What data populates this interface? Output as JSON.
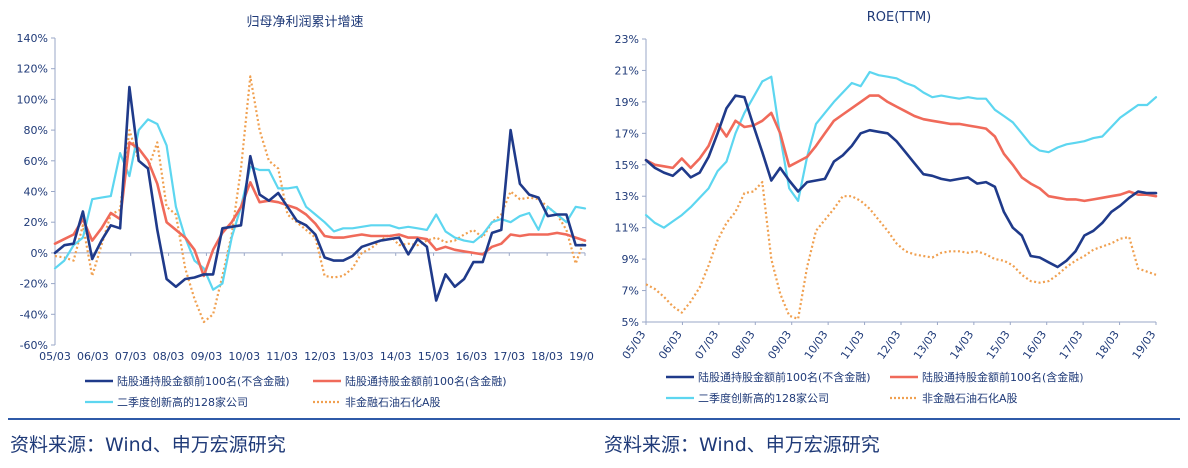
{
  "legend": {
    "s1": "陆股通持股金额前100名(不含金融)",
    "s2": "陆股通持股金额前100名(含金融)",
    "s3": "二季度创新高的128家公司",
    "s4": "非金融石油石化A股"
  },
  "colors": {
    "s1": "#1f3a8a",
    "s2": "#f06a5a",
    "s3": "#5dd6f0",
    "s4": "#f0a050",
    "axis": "#1f3a78"
  },
  "sources": {
    "left": "资料来源：Wind、申万宏源研究",
    "right": "资料来源：Wind、申万宏源研究"
  },
  "chart_data": [
    {
      "type": "line",
      "title": "归母净利润累计增速",
      "ylim": [
        -60,
        140
      ],
      "yticks": [
        "-60%",
        "-40%",
        "-20%",
        "0%",
        "20%",
        "40%",
        "60%",
        "80%",
        "100%",
        "120%",
        "140%"
      ],
      "xlim": [
        0,
        57
      ],
      "xticks": [
        "05/03",
        "06/03",
        "07/03",
        "08/03",
        "09/03",
        "10/03",
        "11/03",
        "12/03",
        "13/03",
        "14/03",
        "15/03",
        "16/03",
        "17/03",
        "18/03",
        "19/03"
      ],
      "series": [
        {
          "name": "陆股通持股金额前100名(不含金融)",
          "style": "solid",
          "width": 2.6,
          "values": [
            0,
            5,
            6,
            27,
            -4,
            8,
            18,
            16,
            108,
            60,
            55,
            15,
            -17,
            -22,
            -17,
            -16,
            -14,
            -14,
            16,
            17,
            18,
            63,
            38,
            34,
            39,
            30,
            21,
            18,
            12,
            -3,
            -5,
            -5,
            -2,
            4,
            6,
            8,
            9,
            10,
            -1,
            9,
            4,
            -31,
            -14,
            -22,
            -17,
            -6,
            -6,
            13,
            15,
            80,
            45,
            38,
            36,
            24,
            25,
            25,
            5,
            5
          ]
        },
        {
          "name": "陆股通持股金额前100名(含金融)",
          "style": "solid",
          "width": 2.6,
          "values": [
            6,
            9,
            12,
            22,
            8,
            16,
            26,
            22,
            72,
            68,
            60,
            45,
            20,
            15,
            10,
            2,
            -15,
            2,
            13,
            20,
            30,
            46,
            33,
            34,
            33,
            31,
            29,
            25,
            19,
            11,
            10,
            10,
            11,
            12,
            11,
            11,
            11,
            12,
            10,
            10,
            9,
            2,
            4,
            2,
            1,
            0,
            -1,
            4,
            6,
            12,
            11,
            12,
            12,
            12,
            13,
            12,
            10,
            8
          ]
        },
        {
          "name": "二季度创新高的128家公司",
          "style": "solid",
          "width": 2.2,
          "values": [
            -10,
            -5,
            5,
            10,
            35,
            36,
            37,
            65,
            50,
            80,
            87,
            84,
            70,
            30,
            10,
            -5,
            -10,
            -24,
            -20,
            10,
            30,
            56,
            54,
            54,
            42,
            42,
            43,
            30,
            25,
            20,
            14,
            16,
            16,
            17,
            18,
            18,
            18,
            16,
            17,
            16,
            15,
            25,
            14,
            10,
            8,
            7,
            12,
            20,
            22,
            20,
            24,
            26,
            15,
            30,
            25,
            20,
            30,
            29
          ]
        },
        {
          "name": "非金融石油石化A股",
          "style": "dotted",
          "width": 2.2,
          "values": [
            -2,
            -3,
            -5,
            18,
            -15,
            5,
            25,
            28,
            80,
            60,
            55,
            72,
            30,
            25,
            -10,
            -30,
            -45,
            -40,
            -15,
            12,
            55,
            115,
            80,
            60,
            55,
            25,
            20,
            15,
            10,
            -15,
            -16,
            -15,
            -10,
            0,
            3,
            8,
            12,
            5,
            6,
            5,
            8,
            10,
            7,
            8,
            12,
            15,
            10,
            20,
            25,
            40,
            35,
            36,
            35,
            30,
            25,
            15,
            -7,
            10
          ]
        }
      ]
    },
    {
      "type": "line",
      "title": "ROE(TTM)",
      "ylim": [
        5,
        23
      ],
      "yticks": [
        "5%",
        "7%",
        "9%",
        "11%",
        "13%",
        "15%",
        "17%",
        "19%",
        "21%",
        "23%"
      ],
      "xlim": [
        0,
        57
      ],
      "xticks": [
        "05/03",
        "06/03",
        "07/03",
        "08/03",
        "09/03",
        "10/03",
        "11/03",
        "12/03",
        "13/03",
        "14/03",
        "15/03",
        "16/03",
        "17/03",
        "18/03",
        "19/03"
      ],
      "series": [
        {
          "name": "陆股通持股金额前100名(不含金融)",
          "style": "solid",
          "width": 2.6,
          "values": [
            15.3,
            14.8,
            14.5,
            14.3,
            14.8,
            14.2,
            14.5,
            15.5,
            17.0,
            18.6,
            19.4,
            19.3,
            17.5,
            15.8,
            14.0,
            14.8,
            14.0,
            13.3,
            13.9,
            14.0,
            14.1,
            15.2,
            15.6,
            16.2,
            17.0,
            17.2,
            17.1,
            17.0,
            16.5,
            15.8,
            15.1,
            14.4,
            14.3,
            14.1,
            14.0,
            14.1,
            14.2,
            13.8,
            13.9,
            13.6,
            12.0,
            11.0,
            10.5,
            9.2,
            9.1,
            8.8,
            8.5,
            8.9,
            9.5,
            10.5,
            10.8,
            11.3,
            12.0,
            12.4,
            12.9,
            13.3,
            13.2,
            13.2
          ]
        },
        {
          "name": "陆股通持股金额前100名(含金融)",
          "style": "solid",
          "width": 2.6,
          "values": [
            15.3,
            15.0,
            14.9,
            14.8,
            15.4,
            14.8,
            15.4,
            16.2,
            17.6,
            16.8,
            17.8,
            17.4,
            17.5,
            17.8,
            18.3,
            17.0,
            14.9,
            15.2,
            15.5,
            16.2,
            17.0,
            17.8,
            18.2,
            18.6,
            19.0,
            19.4,
            19.4,
            19.0,
            18.7,
            18.4,
            18.1,
            17.9,
            17.8,
            17.7,
            17.6,
            17.6,
            17.5,
            17.4,
            17.3,
            16.8,
            15.7,
            15.0,
            14.2,
            13.8,
            13.5,
            13.0,
            12.9,
            12.8,
            12.8,
            12.7,
            12.8,
            12.9,
            13.0,
            13.1,
            13.3,
            13.1,
            13.1,
            13.0
          ]
        },
        {
          "name": "二季度创新高的128家公司",
          "style": "solid",
          "width": 2.2,
          "values": [
            11.8,
            11.3,
            11.0,
            11.4,
            11.8,
            12.3,
            12.9,
            13.5,
            14.6,
            15.2,
            17.0,
            18.3,
            19.3,
            20.3,
            20.6,
            16.8,
            13.5,
            12.7,
            15.5,
            17.6,
            18.3,
            19.0,
            19.6,
            20.2,
            20.0,
            20.9,
            20.7,
            20.6,
            20.5,
            20.2,
            20.0,
            19.6,
            19.3,
            19.4,
            19.3,
            19.2,
            19.3,
            19.2,
            19.2,
            18.5,
            18.1,
            17.7,
            17.0,
            16.3,
            15.9,
            15.8,
            16.1,
            16.3,
            16.4,
            16.5,
            16.7,
            16.8,
            17.4,
            18.0,
            18.4,
            18.8,
            18.8,
            19.3
          ]
        },
        {
          "name": "非金融石油石化A股",
          "style": "dotted",
          "width": 2.2,
          "values": [
            7.4,
            7.1,
            6.6,
            6.0,
            5.6,
            6.3,
            7.2,
            8.6,
            10.2,
            11.3,
            12.0,
            13.2,
            13.3,
            13.9,
            9.0,
            6.8,
            5.4,
            5.2,
            8.5,
            10.8,
            11.5,
            12.2,
            13.0,
            13.0,
            12.7,
            12.2,
            11.5,
            10.8,
            10.0,
            9.5,
            9.3,
            9.2,
            9.1,
            9.4,
            9.5,
            9.5,
            9.4,
            9.5,
            9.3,
            9.0,
            8.9,
            8.6,
            8.0,
            7.6,
            7.5,
            7.6,
            8.0,
            8.5,
            8.9,
            9.2,
            9.6,
            9.8,
            10.0,
            10.3,
            10.4,
            8.4,
            8.2,
            8.0
          ]
        }
      ]
    }
  ]
}
